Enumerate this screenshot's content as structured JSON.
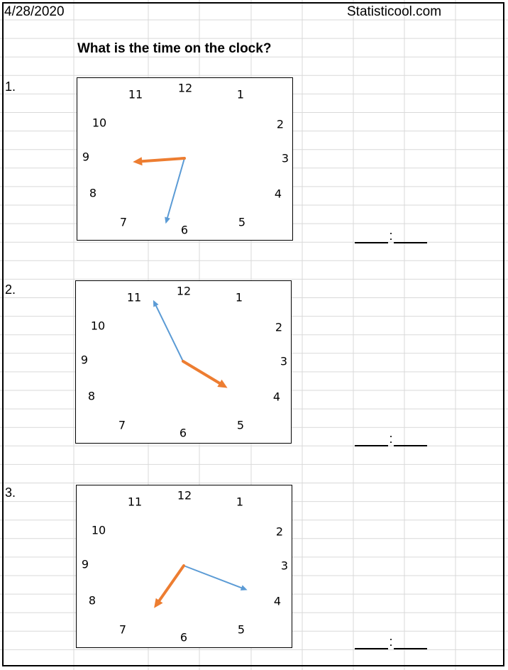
{
  "header": {
    "date": "4/28/2020",
    "site": "Statisticool.com"
  },
  "title": "What is the time on the clock?",
  "clock_numbers": [
    "12",
    "1",
    "2",
    "3",
    "4",
    "5",
    "6",
    "7",
    "8",
    "9",
    "10",
    "11"
  ],
  "hand_colors": {
    "hour": "#ed7d31",
    "minute": "#5b9bd5"
  },
  "answer_colon": ":",
  "questions": [
    {
      "label": "1.",
      "hour_angle_deg": 266,
      "minute_angle_deg": 196
    },
    {
      "label": "2.",
      "hour_angle_deg": 121,
      "minute_angle_deg": 334
    },
    {
      "label": "3.",
      "hour_angle_deg": 215,
      "minute_angle_deg": 111
    }
  ]
}
